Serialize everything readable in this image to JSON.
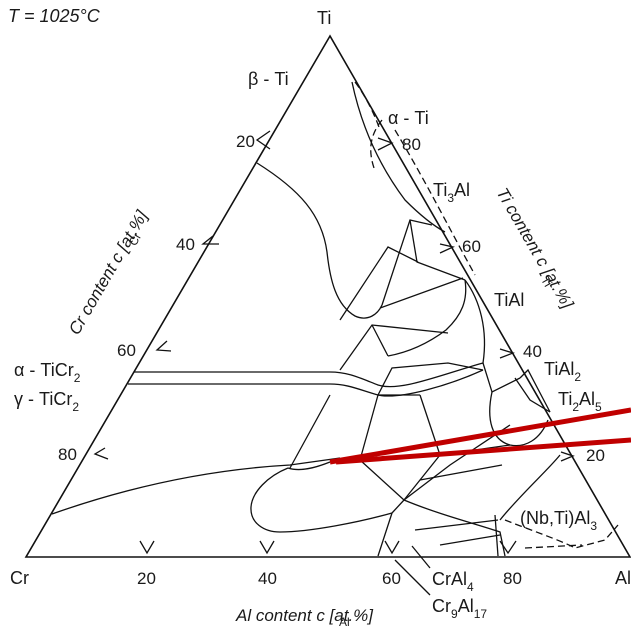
{
  "temperature": "T = 1025°C",
  "vertices": {
    "top": "Ti",
    "left": "Cr",
    "right": "Al"
  },
  "axes": {
    "cr": "Cr content c  [at.%]",
    "cr_sub": "Cr",
    "ti": "Ti content c  [at.%]",
    "ti_sub": "Ti",
    "al": "Al content c   [at.%]",
    "al_sub": "Al"
  },
  "ticks": {
    "left": [
      "20",
      "40",
      "60",
      "80"
    ],
    "right": [
      "80",
      "60",
      "40",
      "20"
    ],
    "bottom": [
      "20",
      "40",
      "60",
      "80"
    ]
  },
  "phases": {
    "beta_ti": "β - Ti",
    "alpha_ti": "α - Ti",
    "ti3al_main": "Ti",
    "ti3al_sub": "3",
    "ti3al_tail": "Al",
    "tial": "TiAl",
    "tial2_main": "TiAl",
    "tial2_sub": "2",
    "ti2al5_a": "Ti",
    "ti2al5_b": "2",
    "ti2al5_c": "Al",
    "ti2al5_d": "5",
    "alpha_ticr2_main": "α - TiCr",
    "alpha_ticr2_sub": "2",
    "gamma_ticr2_main": "γ - TiCr",
    "gamma_ticr2_sub": "2",
    "craI4_main": "CrAl",
    "craI4_sub": "4",
    "cr9al17_a": "Cr",
    "cr9al17_b": "9",
    "cr9al17_c": "Al",
    "cr9al17_d": "17",
    "nbtial3_main": "(Nb,Ti)Al",
    "nbtial3_sub": "3"
  },
  "colors": {
    "line": "#111111",
    "highlight": "#c00000",
    "background": "#ffffff"
  }
}
